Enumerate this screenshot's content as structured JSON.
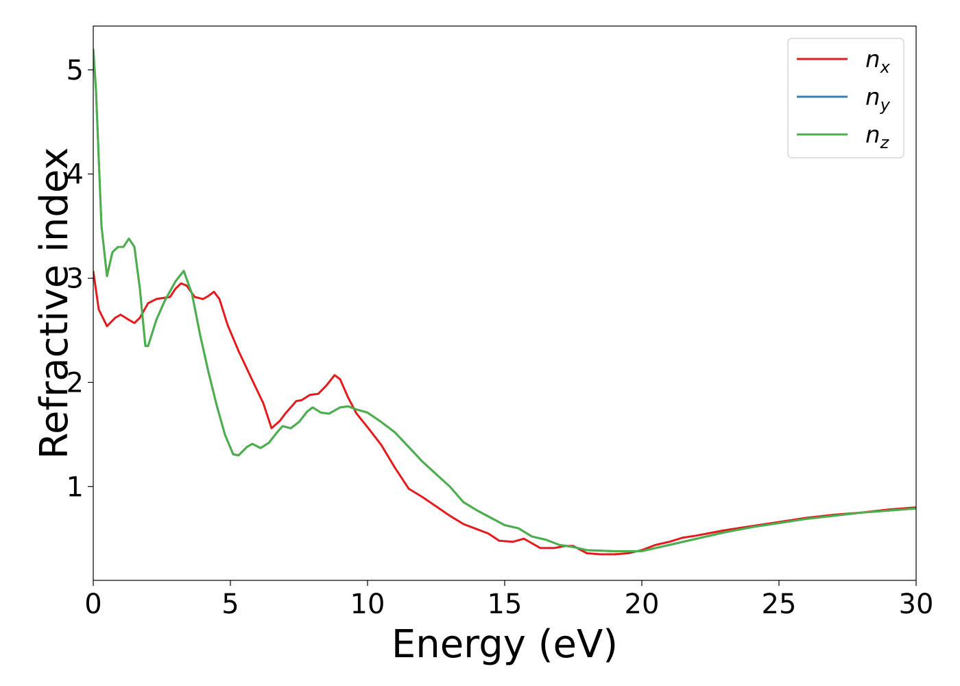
{
  "chart_data": {
    "type": "line",
    "title": "",
    "xlabel": "Energy (eV)",
    "ylabel": "Refractive index",
    "xlim": [
      0,
      30
    ],
    "ylim": [
      0.1,
      5.42
    ],
    "xticks": [
      0,
      5,
      10,
      15,
      20,
      25,
      30
    ],
    "yticks": [
      1,
      2,
      3,
      4,
      5
    ],
    "grid": false,
    "legend_position": "top-right",
    "series": [
      {
        "name": "n_x",
        "label_base": "n",
        "label_sub": "x",
        "color": "#e41a1c",
        "points": [
          [
            0,
            3.07
          ],
          [
            0.2,
            2.7
          ],
          [
            0.5,
            2.54
          ],
          [
            0.8,
            2.62
          ],
          [
            1.0,
            2.65
          ],
          [
            1.3,
            2.6
          ],
          [
            1.5,
            2.57
          ],
          [
            1.7,
            2.62
          ],
          [
            2.0,
            2.76
          ],
          [
            2.3,
            2.8
          ],
          [
            2.8,
            2.82
          ],
          [
            3.0,
            2.9
          ],
          [
            3.2,
            2.95
          ],
          [
            3.4,
            2.93
          ],
          [
            3.7,
            2.82
          ],
          [
            4.0,
            2.8
          ],
          [
            4.2,
            2.83
          ],
          [
            4.4,
            2.87
          ],
          [
            4.6,
            2.8
          ],
          [
            4.9,
            2.55
          ],
          [
            5.3,
            2.3
          ],
          [
            5.8,
            2.02
          ],
          [
            6.2,
            1.8
          ],
          [
            6.5,
            1.56
          ],
          [
            6.8,
            1.63
          ],
          [
            7.0,
            1.7
          ],
          [
            7.4,
            1.82
          ],
          [
            7.6,
            1.83
          ],
          [
            7.9,
            1.88
          ],
          [
            8.2,
            1.89
          ],
          [
            8.5,
            1.97
          ],
          [
            8.8,
            2.07
          ],
          [
            9.0,
            2.03
          ],
          [
            9.3,
            1.85
          ],
          [
            9.6,
            1.7
          ],
          [
            10.0,
            1.57
          ],
          [
            10.5,
            1.4
          ],
          [
            11.0,
            1.18
          ],
          [
            11.5,
            0.98
          ],
          [
            12.0,
            0.9
          ],
          [
            12.5,
            0.81
          ],
          [
            13.0,
            0.72
          ],
          [
            13.5,
            0.64
          ],
          [
            14.0,
            0.59
          ],
          [
            14.4,
            0.55
          ],
          [
            14.8,
            0.48
          ],
          [
            15.3,
            0.47
          ],
          [
            15.7,
            0.5
          ],
          [
            16.3,
            0.41
          ],
          [
            16.8,
            0.41
          ],
          [
            17.2,
            0.43
          ],
          [
            17.5,
            0.43
          ],
          [
            18.0,
            0.36
          ],
          [
            18.5,
            0.35
          ],
          [
            19.0,
            0.35
          ],
          [
            19.5,
            0.36
          ],
          [
            20.0,
            0.39
          ],
          [
            20.5,
            0.44
          ],
          [
            21.0,
            0.47
          ],
          [
            21.5,
            0.51
          ],
          [
            22.0,
            0.53
          ],
          [
            23.0,
            0.58
          ],
          [
            24.0,
            0.62
          ],
          [
            25.0,
            0.66
          ],
          [
            26.0,
            0.7
          ],
          [
            27.0,
            0.73
          ],
          [
            28.0,
            0.75
          ],
          [
            29.0,
            0.78
          ],
          [
            30.0,
            0.8
          ]
        ]
      },
      {
        "name": "n_y",
        "label_base": "n",
        "label_sub": "y",
        "color": "#377eb8",
        "points": [
          [
            0,
            5.2
          ],
          [
            0.1,
            4.8
          ],
          [
            0.3,
            3.5
          ],
          [
            0.5,
            3.02
          ],
          [
            0.7,
            3.25
          ],
          [
            0.9,
            3.3
          ],
          [
            1.1,
            3.3
          ],
          [
            1.3,
            3.38
          ],
          [
            1.5,
            3.3
          ],
          [
            1.7,
            2.9
          ],
          [
            1.9,
            2.35
          ],
          [
            2.0,
            2.35
          ],
          [
            2.3,
            2.6
          ],
          [
            2.6,
            2.78
          ],
          [
            3.0,
            2.97
          ],
          [
            3.3,
            3.07
          ],
          [
            3.6,
            2.85
          ],
          [
            3.9,
            2.45
          ],
          [
            4.2,
            2.1
          ],
          [
            4.5,
            1.78
          ],
          [
            4.8,
            1.5
          ],
          [
            5.1,
            1.31
          ],
          [
            5.3,
            1.3
          ],
          [
            5.6,
            1.38
          ],
          [
            5.8,
            1.41
          ],
          [
            6.1,
            1.37
          ],
          [
            6.4,
            1.42
          ],
          [
            6.7,
            1.52
          ],
          [
            6.9,
            1.58
          ],
          [
            7.2,
            1.56
          ],
          [
            7.5,
            1.62
          ],
          [
            7.8,
            1.72
          ],
          [
            8.0,
            1.76
          ],
          [
            8.3,
            1.71
          ],
          [
            8.6,
            1.7
          ],
          [
            9.0,
            1.76
          ],
          [
            9.3,
            1.77
          ],
          [
            9.6,
            1.74
          ],
          [
            10.0,
            1.71
          ],
          [
            10.5,
            1.62
          ],
          [
            11.0,
            1.52
          ],
          [
            11.5,
            1.38
          ],
          [
            12.0,
            1.24
          ],
          [
            12.5,
            1.12
          ],
          [
            13.0,
            1.0
          ],
          [
            13.5,
            0.85
          ],
          [
            14.0,
            0.77
          ],
          [
            14.5,
            0.7
          ],
          [
            15.0,
            0.63
          ],
          [
            15.5,
            0.6
          ],
          [
            16.0,
            0.52
          ],
          [
            16.5,
            0.49
          ],
          [
            17.0,
            0.44
          ],
          [
            17.5,
            0.42
          ],
          [
            18.0,
            0.39
          ],
          [
            19.0,
            0.38
          ],
          [
            20.0,
            0.38
          ],
          [
            21.0,
            0.44
          ],
          [
            22.0,
            0.5
          ],
          [
            23.0,
            0.56
          ],
          [
            24.0,
            0.61
          ],
          [
            25.0,
            0.65
          ],
          [
            26.0,
            0.69
          ],
          [
            27.0,
            0.72
          ],
          [
            28.0,
            0.75
          ],
          [
            29.0,
            0.77
          ],
          [
            30.0,
            0.79
          ]
        ]
      },
      {
        "name": "n_z",
        "label_base": "n",
        "label_sub": "z",
        "color": "#4daf4a",
        "points": [
          [
            0,
            5.2
          ],
          [
            0.1,
            4.8
          ],
          [
            0.3,
            3.5
          ],
          [
            0.5,
            3.02
          ],
          [
            0.7,
            3.25
          ],
          [
            0.9,
            3.3
          ],
          [
            1.1,
            3.3
          ],
          [
            1.3,
            3.38
          ],
          [
            1.5,
            3.3
          ],
          [
            1.7,
            2.9
          ],
          [
            1.9,
            2.35
          ],
          [
            2.0,
            2.35
          ],
          [
            2.3,
            2.6
          ],
          [
            2.6,
            2.78
          ],
          [
            3.0,
            2.97
          ],
          [
            3.3,
            3.07
          ],
          [
            3.6,
            2.85
          ],
          [
            3.9,
            2.45
          ],
          [
            4.2,
            2.1
          ],
          [
            4.5,
            1.78
          ],
          [
            4.8,
            1.5
          ],
          [
            5.1,
            1.31
          ],
          [
            5.3,
            1.3
          ],
          [
            5.6,
            1.38
          ],
          [
            5.8,
            1.41
          ],
          [
            6.1,
            1.37
          ],
          [
            6.4,
            1.42
          ],
          [
            6.7,
            1.52
          ],
          [
            6.9,
            1.58
          ],
          [
            7.2,
            1.56
          ],
          [
            7.5,
            1.62
          ],
          [
            7.8,
            1.72
          ],
          [
            8.0,
            1.76
          ],
          [
            8.3,
            1.71
          ],
          [
            8.6,
            1.7
          ],
          [
            9.0,
            1.76
          ],
          [
            9.3,
            1.77
          ],
          [
            9.6,
            1.74
          ],
          [
            10.0,
            1.71
          ],
          [
            10.5,
            1.62
          ],
          [
            11.0,
            1.52
          ],
          [
            11.5,
            1.38
          ],
          [
            12.0,
            1.24
          ],
          [
            12.5,
            1.12
          ],
          [
            13.0,
            1.0
          ],
          [
            13.5,
            0.85
          ],
          [
            14.0,
            0.77
          ],
          [
            14.5,
            0.7
          ],
          [
            15.0,
            0.63
          ],
          [
            15.5,
            0.6
          ],
          [
            16.0,
            0.52
          ],
          [
            16.5,
            0.49
          ],
          [
            17.0,
            0.44
          ],
          [
            17.5,
            0.42
          ],
          [
            18.0,
            0.39
          ],
          [
            19.0,
            0.38
          ],
          [
            20.0,
            0.38
          ],
          [
            21.0,
            0.44
          ],
          [
            22.0,
            0.5
          ],
          [
            23.0,
            0.56
          ],
          [
            24.0,
            0.61
          ],
          [
            25.0,
            0.65
          ],
          [
            26.0,
            0.69
          ],
          [
            27.0,
            0.72
          ],
          [
            28.0,
            0.75
          ],
          [
            29.0,
            0.77
          ],
          [
            30.0,
            0.79
          ]
        ]
      }
    ]
  }
}
